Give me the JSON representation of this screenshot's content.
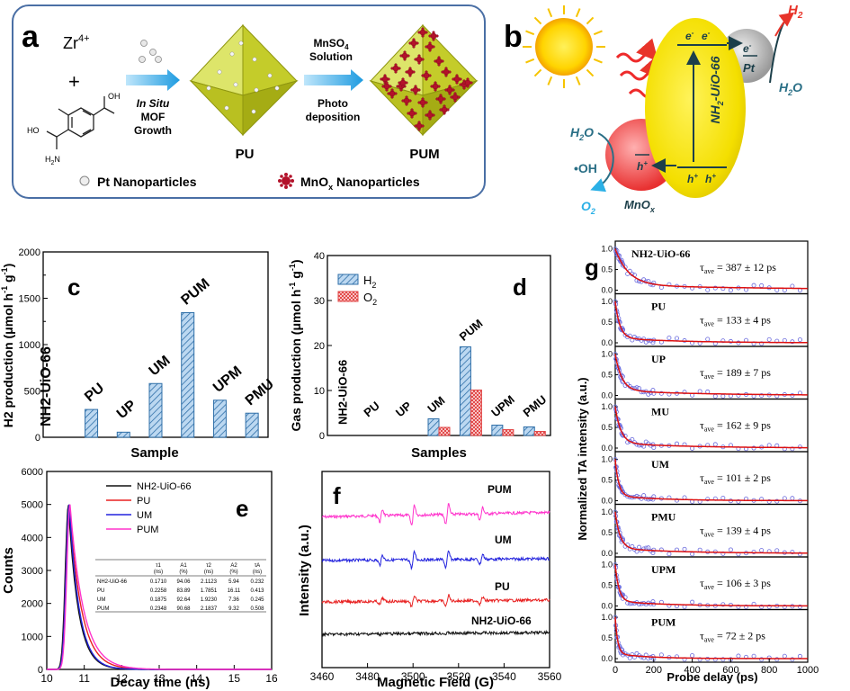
{
  "panel_a": {
    "letter": "a",
    "zr": "Zr",
    "zr_sup": "4+",
    "plus": "+",
    "nh2": "H",
    "nh2_sub": "2",
    "nh2_n": "N",
    "ho_left": "HO",
    "oh_right": "OH",
    "step1": [
      "In Situ",
      "MOF",
      "Growth"
    ],
    "mnso4": "MnSO",
    "mnso4_sub": "4",
    "solution": "Solution",
    "step2": [
      "Photo",
      "deposition"
    ],
    "pu": "PU",
    "pum": "PUM",
    "pt_legend": "Pt Nanoparticles",
    "mnox_legend": "MnO",
    "mnox_sub": "x",
    "mnox_legend_tail": " Nanoparticles"
  },
  "panel_b": {
    "letter": "b",
    "h2": "H",
    "h2_sub": "2",
    "h2o_top": "H",
    "h2o_top_sub": "2",
    "h2o_top_tail": "O",
    "pt": "Pt",
    "e_minus": "e",
    "mof": "NH",
    "mof_sub": "2",
    "mof_tail": "-UiO-66",
    "h2o_left": "H",
    "h2o_left_sub": "2",
    "h2o_left_tail": "O",
    "oh": "•OH",
    "o2": "O",
    "o2_sub": "2",
    "mnox": "MnO",
    "mnox_sub": "x",
    "h_plus": "h"
  },
  "panel_c": {
    "letter": "c",
    "ylabel": "H2 production (μmol h",
    "ylabel_sup1": "-1",
    "ylabel_mid": " g",
    "ylabel_sup2": "-1",
    "ylabel_end": ")",
    "xlabel": "Sample",
    "yticks": [
      "0",
      "500",
      "1000",
      "1500",
      "2000"
    ]
  },
  "panel_d": {
    "letter": "d",
    "ylabel": "Gas production (μmol h",
    "ylabel_sup1": "-1",
    "ylabel_mid": " g",
    "ylabel_sup2": "-1",
    "ylabel_end": ")",
    "xlabel": "Samples",
    "yticks": [
      "0",
      "10",
      "20",
      "30",
      "40"
    ],
    "legend": [
      "H",
      "O"
    ],
    "legend_sub": "2"
  },
  "panel_e": {
    "letter": "e",
    "ylabel": "Counts",
    "xlabel": "Decay time (ns)",
    "yticks": [
      "0",
      "1000",
      "2000",
      "3000",
      "4000",
      "5000",
      "6000"
    ],
    "xticks": [
      "10",
      "11",
      "12",
      "13",
      "14",
      "15",
      "16"
    ],
    "legend": [
      "NH2-UiO-66",
      "PU",
      "UM",
      "PUM"
    ],
    "table_header": [
      "τ1",
      "A1",
      "τ2",
      "A2",
      "τA"
    ],
    "table_units": [
      "(ns)",
      "(%)",
      "(ns)",
      "(%)",
      "(ns)"
    ],
    "table_rows": [
      [
        "NH2-UiO-66",
        "0.1710",
        "94.06",
        "2.1123",
        "5.94",
        "0.232"
      ],
      [
        "PU",
        "0.2258",
        "83.89",
        "1.7851",
        "16.11",
        "0.413"
      ],
      [
        "UM",
        "0.1875",
        "92.64",
        "1.9230",
        "7.36",
        "0.245"
      ],
      [
        "PUM",
        "0.2348",
        "90.68",
        "2.1837",
        "9.32",
        "0.508"
      ]
    ]
  },
  "panel_f": {
    "letter": "f",
    "ylabel": "Intensity (a.u.)",
    "xlabel": "Magnetic Field (G)",
    "xticks": [
      "3460",
      "3480",
      "3500",
      "3520",
      "3540",
      "3560"
    ],
    "labels": [
      "PUM",
      "UM",
      "PU",
      "NH2-UiO-66"
    ]
  },
  "panel_g": {
    "letter": "g",
    "ylabel": "Normalized TA intensity (a.u.)",
    "xlabel": "Probe delay (ps)",
    "xticks": [
      "0",
      "200",
      "400",
      "600",
      "800",
      "1000"
    ],
    "yticks": [
      "0.0",
      "0.5",
      "1.0"
    ],
    "panels": [
      {
        "name": "NH2-UiO-66",
        "tau": "387",
        "err": "12"
      },
      {
        "name": "PU",
        "tau": "133",
        "err": "4"
      },
      {
        "name": "UP",
        "tau": "189",
        "err": "7"
      },
      {
        "name": "MU",
        "tau": "162",
        "err": "9"
      },
      {
        "name": "UM",
        "tau": "101",
        "err": "2"
      },
      {
        "name": "PMU",
        "tau": "139",
        "err": "4"
      },
      {
        "name": "UPM",
        "tau": "106",
        "err": "3"
      },
      {
        "name": "PUM",
        "tau": "72",
        "err": "2"
      }
    ]
  },
  "colors": {
    "bar_blue": "#5b9bd5",
    "bar_red": "#e24a4a",
    "pink": "#ff33cc",
    "blue": "#2222dd",
    "red": "#e82020",
    "black": "#111111",
    "fit_red": "#dd1111",
    "dots": "#6b6bdd",
    "yellow": "#f2e300",
    "mof": "#c8cf3a"
  },
  "chart_data": [
    {
      "type": "bar",
      "id": "c",
      "categories": [
        "NH2-UiO-66",
        "PU",
        "UP",
        "UM",
        "PUM",
        "UPM",
        "PMU"
      ],
      "values": [
        0,
        300,
        55,
        580,
        1345,
        400,
        260
      ],
      "ylim": [
        0,
        2000
      ],
      "xlabel": "Sample",
      "ylabel": "H2 production (μmol h-1 g-1)"
    },
    {
      "type": "bar",
      "id": "d",
      "categories": [
        "NH2-UiO-66",
        "PU",
        "UP",
        "UM",
        "PUM",
        "UPM",
        "PMU"
      ],
      "series": [
        {
          "name": "H2",
          "values": [
            0,
            0,
            0,
            3.7,
            19.7,
            2.3,
            1.9
          ]
        },
        {
          "name": "O2",
          "values": [
            0,
            0,
            0,
            1.8,
            10.1,
            1.3,
            0.9
          ]
        }
      ],
      "ylim": [
        0,
        40
      ],
      "xlabel": "Samples",
      "ylabel": "Gas production (μmol h-1 g-1)"
    },
    {
      "type": "line",
      "id": "e",
      "xlim": [
        10,
        16
      ],
      "ylim": [
        0,
        6000
      ],
      "xlabel": "Decay time (ns)",
      "ylabel": "Counts",
      "series": [
        {
          "name": "NH2-UiO-66",
          "peak_x": 10.58,
          "peak": 4980,
          "tau": 0.232
        },
        {
          "name": "PU",
          "peak_x": 10.6,
          "peak": 5000,
          "tau": 0.413
        },
        {
          "name": "UM",
          "peak_x": 10.6,
          "peak": 5000,
          "tau": 0.245
        },
        {
          "name": "PUM",
          "peak_x": 10.62,
          "peak": 5000,
          "tau": 0.508
        }
      ]
    },
    {
      "type": "line",
      "id": "f",
      "xlim": [
        3460,
        3560
      ],
      "xlabel": "Magnetic Field (G)",
      "ylabel": "Intensity (a.u.)",
      "series": [
        {
          "name": "PUM",
          "amplitude": 1.0
        },
        {
          "name": "UM",
          "amplitude": 0.8
        },
        {
          "name": "PU",
          "amplitude": 0.55
        },
        {
          "name": "NH2-UiO-66",
          "amplitude": 0.08
        }
      ],
      "lines_at": [
        3486,
        3500,
        3515,
        3530
      ]
    },
    {
      "type": "scatter",
      "id": "g",
      "xlim": [
        0,
        1000
      ],
      "ylim": [
        0,
        1.1
      ],
      "xlabel": "Probe delay (ps)",
      "ylabel": "Normalized TA intensity (a.u.)",
      "series": [
        {
          "name": "NH2-UiO-66",
          "tau_ave": 387
        },
        {
          "name": "PU",
          "tau_ave": 133
        },
        {
          "name": "UP",
          "tau_ave": 189
        },
        {
          "name": "MU",
          "tau_ave": 162
        },
        {
          "name": "UM",
          "tau_ave": 101
        },
        {
          "name": "PMU",
          "tau_ave": 139
        },
        {
          "name": "UPM",
          "tau_ave": 106
        },
        {
          "name": "PUM",
          "tau_ave": 72
        }
      ]
    }
  ]
}
